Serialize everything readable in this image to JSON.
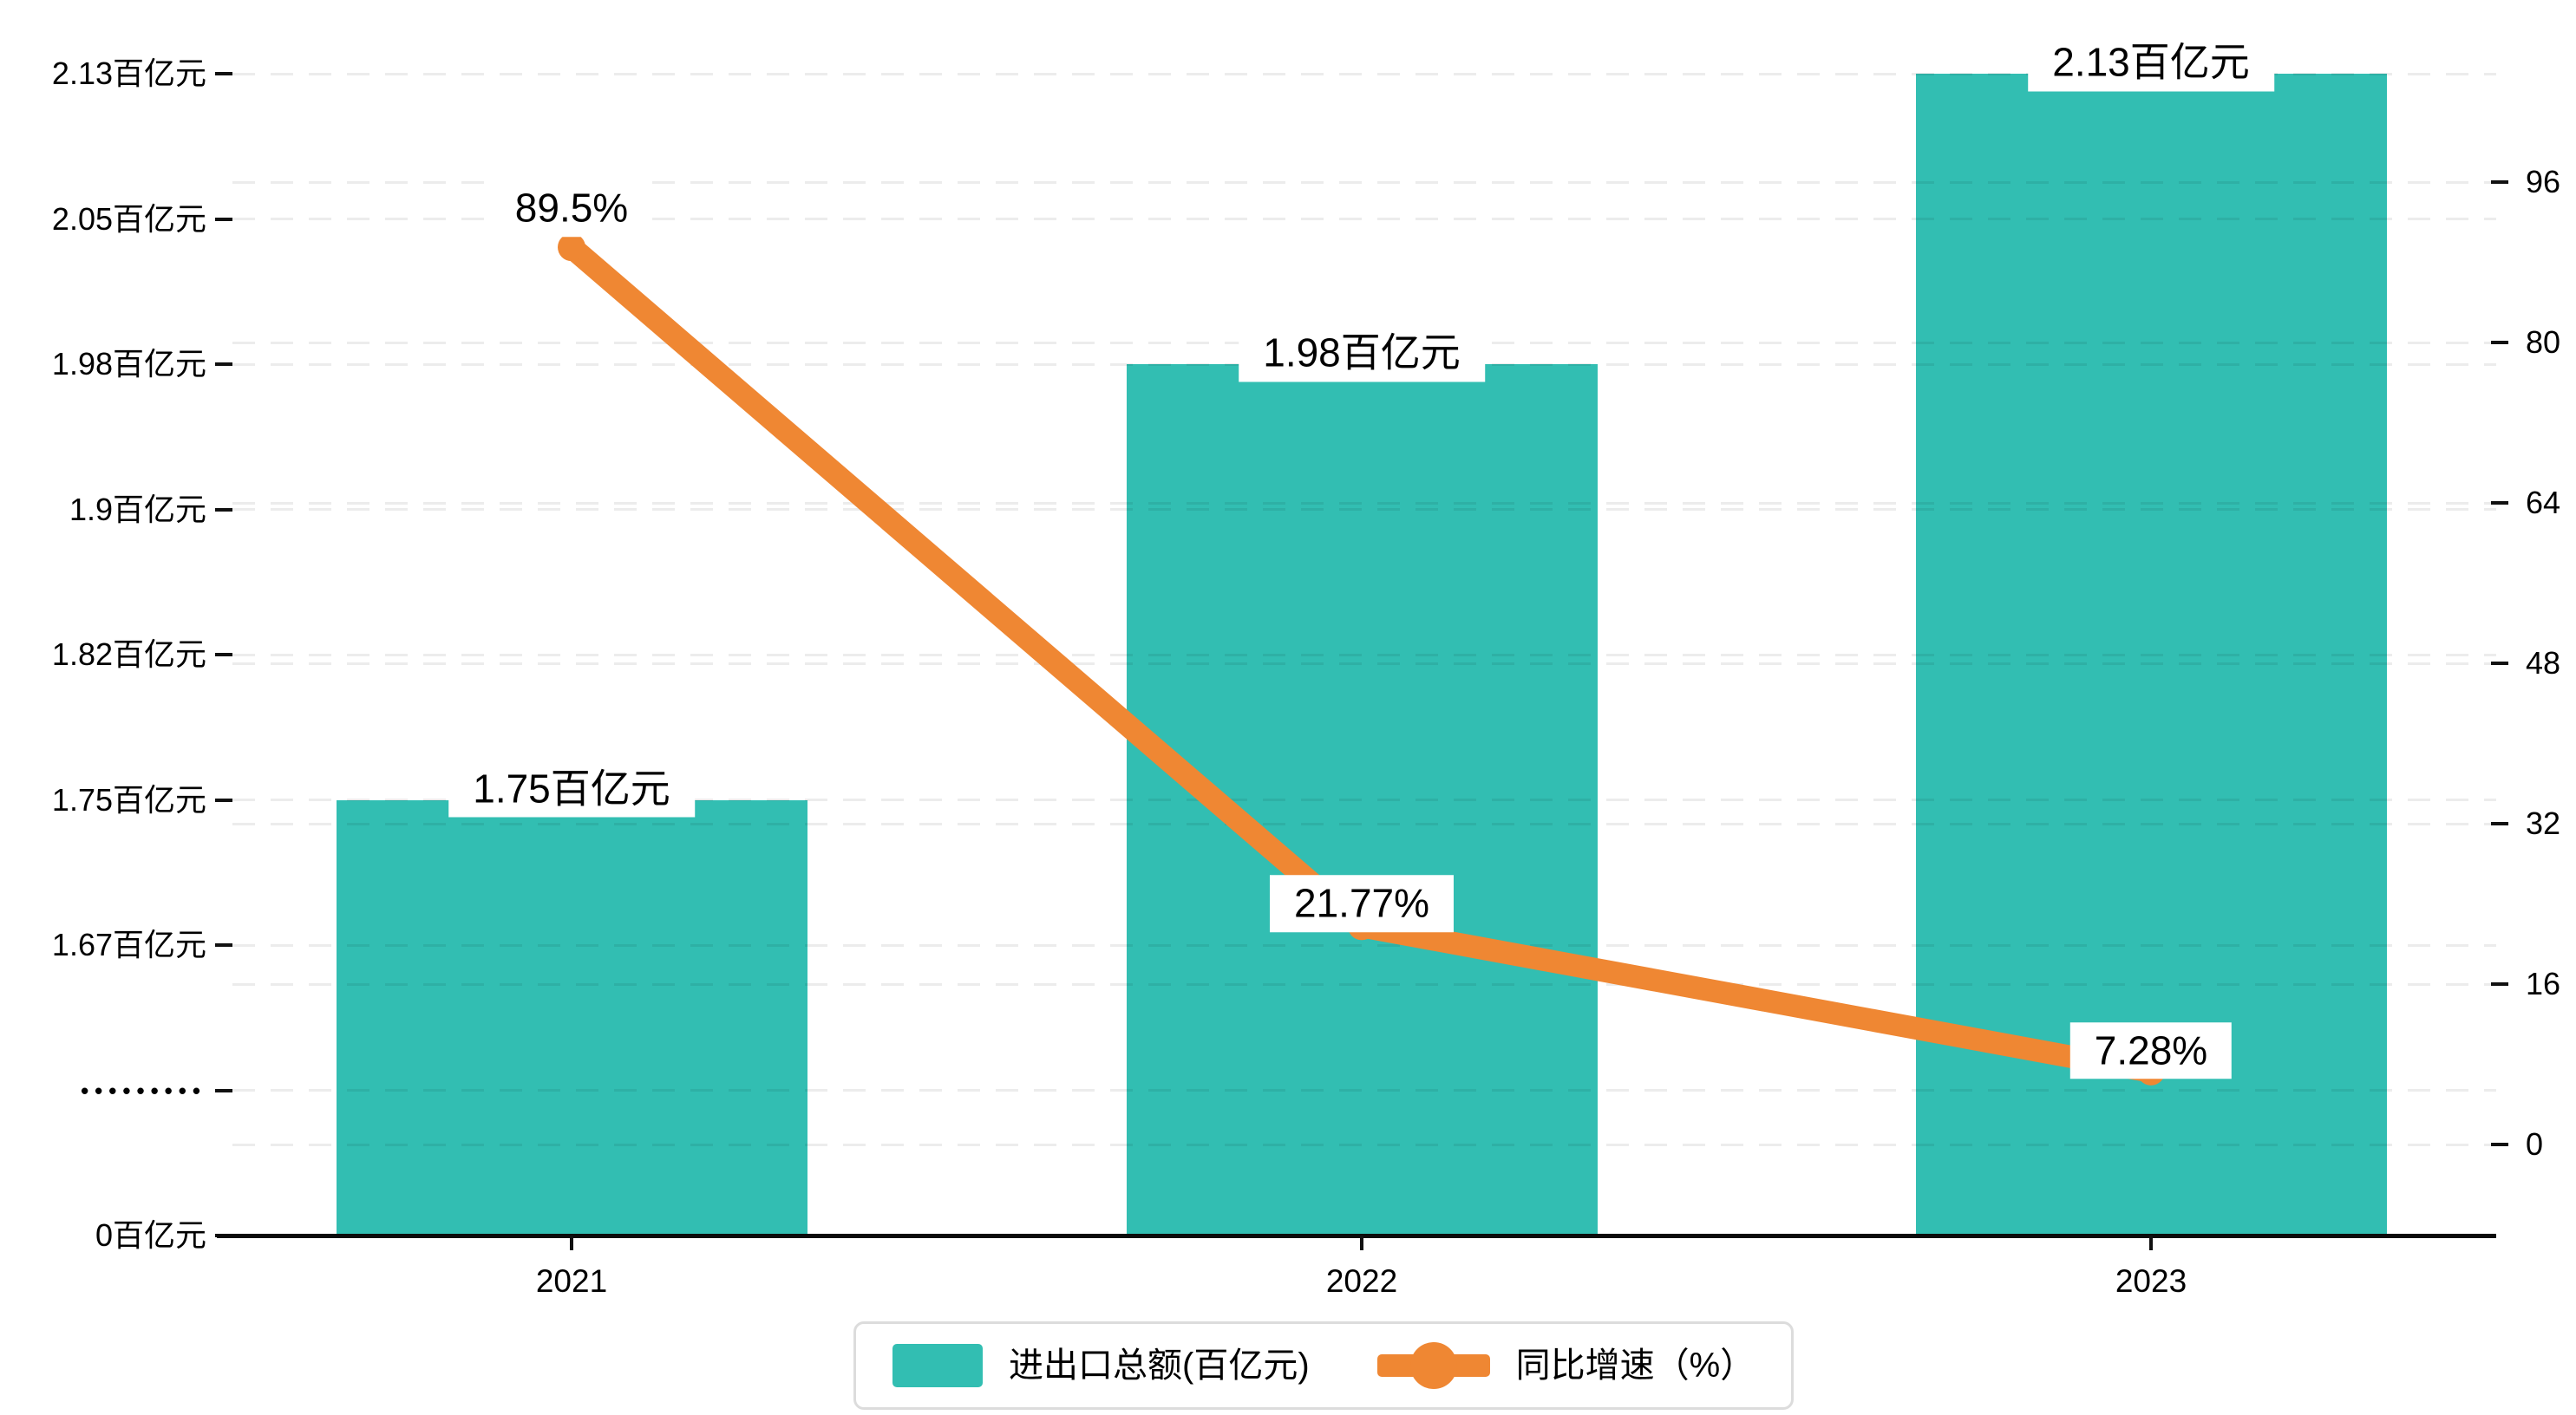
{
  "chart_data": {
    "type": "bar+line",
    "categories": [
      "2021",
      "2022",
      "2023"
    ],
    "series": [
      {
        "name": "进出口总额(百亿元)",
        "type": "bar",
        "axis": "left",
        "values": [
          1.75,
          1.98,
          2.13
        ],
        "labels": [
          "1.75百亿元",
          "1.98百亿元",
          "2.13百亿元"
        ],
        "color": "#32BEB2"
      },
      {
        "name": "同比增速（%）",
        "type": "line",
        "axis": "right",
        "values": [
          89.5,
          21.77,
          7.28
        ],
        "labels": [
          "89.5%",
          "21.77%",
          "7.28%"
        ],
        "color": "#EF8733"
      }
    ],
    "left_axis": {
      "unit": "百亿元",
      "tick_labels": [
        "0百亿元",
        "•••••••••",
        "1.67百亿元",
        "1.75百亿元",
        "1.82百亿元",
        "1.9百亿元",
        "1.98百亿元",
        "2.05百亿元",
        "2.13百亿元"
      ],
      "tick_values": [
        0,
        null,
        1.67,
        1.75,
        1.82,
        1.9,
        1.98,
        2.05,
        2.13
      ],
      "has_break": true
    },
    "right_axis": {
      "tick_labels": [
        "0",
        "16",
        "32",
        "48",
        "64",
        "80",
        "96"
      ],
      "tick_values": [
        0,
        16,
        32,
        48,
        64,
        80,
        96
      ],
      "range": [
        0,
        96
      ]
    },
    "legend": {
      "position": "bottom",
      "items": [
        {
          "label": "进出口总额(百亿元)",
          "marker": "rect",
          "color": "#32BEB2"
        },
        {
          "label": "同比增速（%）",
          "marker": "line-dot",
          "color": "#EF8733"
        }
      ]
    },
    "grid": true,
    "title": ""
  }
}
